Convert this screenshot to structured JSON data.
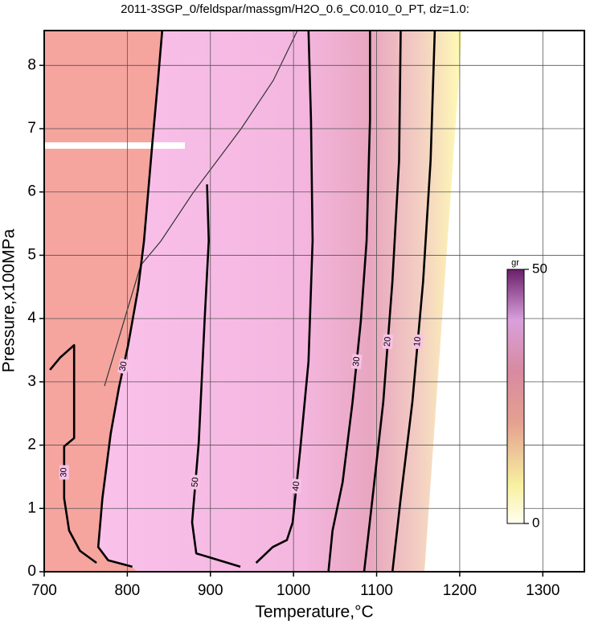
{
  "chart_data": {
    "type": "contour",
    "title": "2011-3SGP_0/feldspar/massgm/H2O_0.6_C0.010_0_PT, dz=1.0:",
    "xlabel": "Temperature,°C",
    "ylabel": "Pressure,x100MPa",
    "xlim": [
      700,
      1350
    ],
    "ylim": [
      0,
      8.55
    ],
    "xticks": [
      700,
      800,
      900,
      1000,
      1100,
      1200,
      1300
    ],
    "yticks": [
      0,
      1,
      2,
      3,
      4,
      5,
      6,
      7,
      8
    ],
    "grid": true,
    "contours": [
      {
        "level": 30,
        "x": [
          842,
          837,
          830,
          820,
          813,
          801,
          790,
          780,
          770,
          765,
          777,
          806
        ],
        "y": [
          8.55,
          7.77,
          6.75,
          5.22,
          4.47,
          3.58,
          2.91,
          2.18,
          1.16,
          0.39,
          0.18,
          0.08
        ]
      },
      {
        "level": 30,
        "x": [
          707,
          719,
          736,
          736,
          724,
          724,
          730,
          743,
          763
        ],
        "y": [
          3.19,
          3.38,
          3.58,
          2.11,
          1.98,
          1.16,
          0.65,
          0.33,
          0.14
        ]
      },
      {
        "level": 50,
        "x": [
          896,
          898,
          893,
          886,
          878,
          883,
          936
        ],
        "y": [
          6.12,
          5.23,
          3.96,
          2.05,
          0.78,
          0.29,
          0.08
        ]
      },
      {
        "level": 40,
        "x": [
          1018,
          1021,
          1023,
          1018,
          1008,
          999,
          992,
          975,
          955
        ],
        "y": [
          8.55,
          7.14,
          5.23,
          3.32,
          1.92,
          0.78,
          0.5,
          0.39,
          0.14
        ]
      },
      {
        "level": 30,
        "x": [
          1092,
          1092,
          1088,
          1081,
          1071,
          1059,
          1047,
          1042
        ],
        "y": [
          8.55,
          7.14,
          5.23,
          3.96,
          2.68,
          1.41,
          0.65,
          0
        ]
      },
      {
        "level": 20,
        "x": [
          1129,
          1127,
          1119,
          1108,
          1095,
          1085
        ],
        "y": [
          8.55,
          6.5,
          4.59,
          2.68,
          1.16,
          0
        ]
      },
      {
        "level": 10,
        "x": [
          1170,
          1165,
          1156,
          1143,
          1129,
          1119
        ],
        "y": [
          8.55,
          6.5,
          4.59,
          2.68,
          1.16,
          0
        ]
      }
    ],
    "colorbar": {
      "label": "gr",
      "lim": [
        0,
        50
      ],
      "ticks": [
        0,
        50
      ]
    }
  }
}
